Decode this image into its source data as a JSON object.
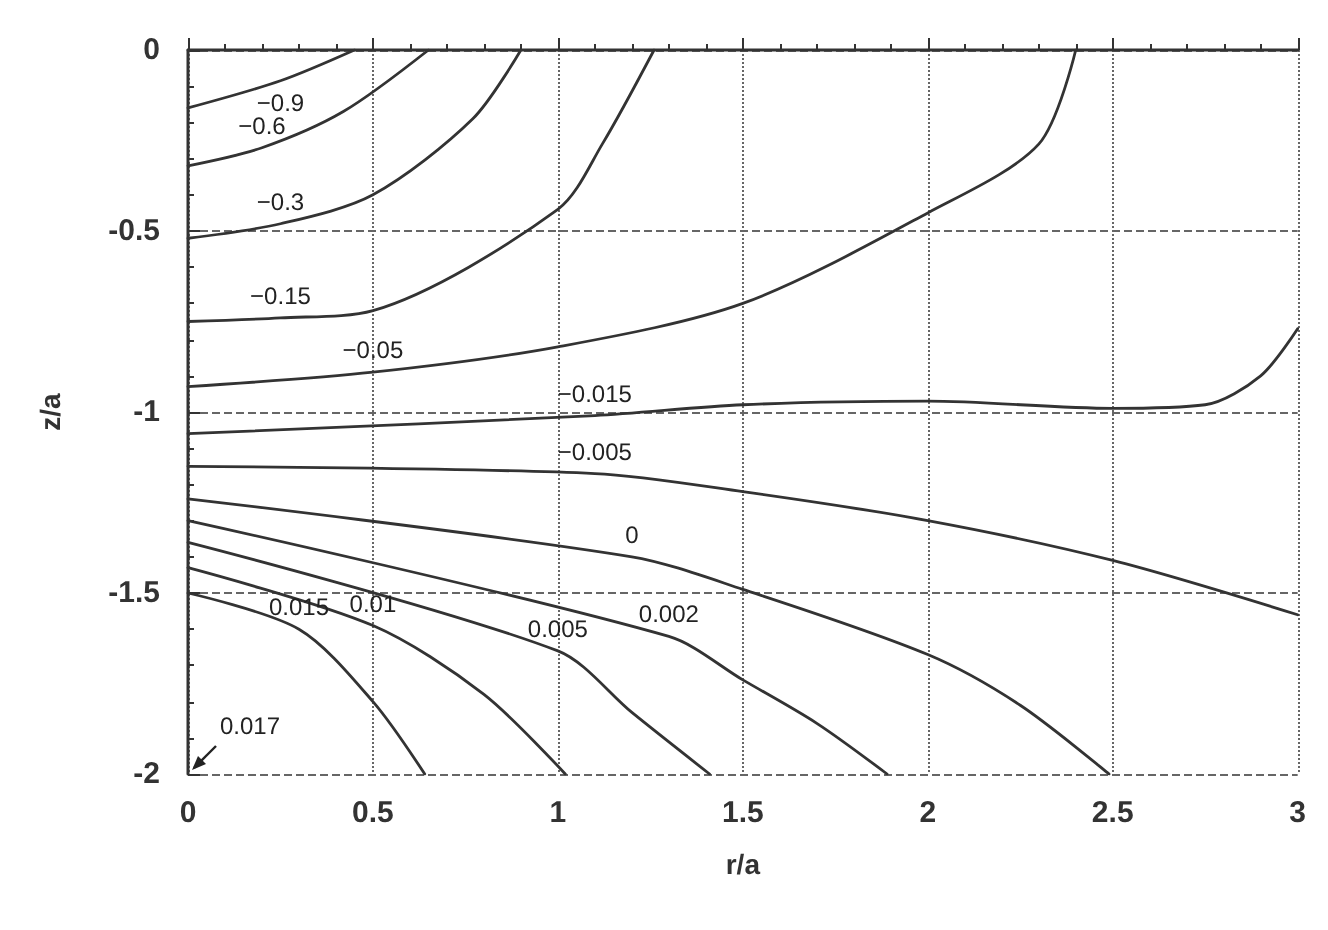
{
  "chart_data": {
    "type": "line",
    "xlabel": "r/a",
    "ylabel": "z/a",
    "xlim": [
      0,
      3
    ],
    "ylim": [
      -2,
      0
    ],
    "xticks": [
      0,
      0.5,
      1,
      1.5,
      2,
      2.5,
      3
    ],
    "yticks": [
      -2,
      -1.5,
      -1,
      -0.5,
      0
    ],
    "grid": true,
    "legend": false,
    "marker": "none",
    "line_style": "solid",
    "series": [
      {
        "name": "−0.9",
        "color": "#333333",
        "x": [
          0,
          0.25,
          0.45
        ],
        "values": [
          -0.16,
          -0.085,
          0
        ]
      },
      {
        "name": "−0.6",
        "color": "#333333",
        "x": [
          0,
          0.2,
          0.42,
          0.65
        ],
        "values": [
          -0.32,
          -0.27,
          -0.17,
          0
        ]
      },
      {
        "name": "−0.3",
        "color": "#333333",
        "x": [
          0,
          0.25,
          0.5,
          0.77,
          0.9
        ],
        "values": [
          -0.52,
          -0.48,
          -0.4,
          -0.19,
          0
        ]
      },
      {
        "name": "−0.15",
        "color": "#333333",
        "x": [
          0,
          0.25,
          0.5,
          1,
          1.12,
          1.26
        ],
        "values": [
          -0.75,
          -0.74,
          -0.72,
          -0.44,
          -0.26,
          0
        ]
      },
      {
        "name": "−0.05",
        "color": "#333333",
        "x": [
          0,
          0.5,
          1,
          1.5,
          2,
          2.3,
          2.4
        ],
        "values": [
          -0.93,
          -0.89,
          -0.82,
          -0.7,
          -0.45,
          -0.26,
          0
        ]
      },
      {
        "name": "−0.015",
        "color": "#333333",
        "x": [
          0,
          1.1,
          1.5,
          2,
          2.5,
          2.75,
          2.9,
          3
        ],
        "values": [
          -1.06,
          -1.01,
          -0.98,
          -0.97,
          -0.99,
          -0.98,
          -0.9,
          -0.77
        ]
      },
      {
        "name": "−0.005",
        "color": "#333333",
        "x": [
          0,
          1.1,
          1.5,
          2,
          2.5,
          3
        ],
        "values": [
          -1.15,
          -1.17,
          -1.22,
          -1.3,
          -1.41,
          -1.56
        ]
      },
      {
        "name": "0",
        "color": "#333333",
        "x": [
          0,
          1.2,
          1.5,
          2,
          2.25,
          2.49
        ],
        "values": [
          -1.24,
          -1.4,
          -1.49,
          -1.67,
          -1.81,
          -2
        ]
      },
      {
        "name": "0.002",
        "color": "#333333",
        "x": [
          0,
          1.3,
          1.5,
          1.7,
          1.89
        ],
        "values": [
          -1.3,
          -1.62,
          -1.74,
          -1.86,
          -2
        ]
      },
      {
        "name": "0.005",
        "color": "#333333",
        "x": [
          0,
          1,
          1.2,
          1.41
        ],
        "values": [
          -1.36,
          -1.66,
          -1.83,
          -2
        ]
      },
      {
        "name": "0.01",
        "color": "#333333",
        "x": [
          0,
          0.5,
          0.8,
          1.02
        ],
        "values": [
          -1.43,
          -1.59,
          -1.78,
          -2
        ]
      },
      {
        "name": "0.015",
        "color": "#333333",
        "x": [
          0,
          0.3,
          0.5,
          0.64
        ],
        "values": [
          -1.5,
          -1.6,
          -1.8,
          -2
        ]
      }
    ],
    "annotations": [
      "0.017"
    ]
  }
}
